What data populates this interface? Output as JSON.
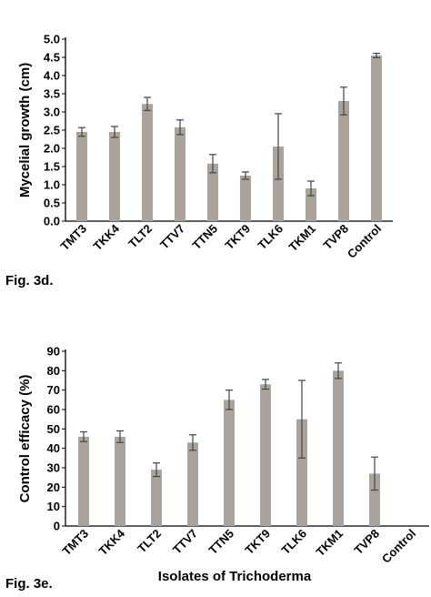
{
  "chart_data": [
    {
      "type": "bar",
      "categories": [
        "TMT3",
        "TKK4",
        "TLT2",
        "TTV7",
        "TTN5",
        "TKT9",
        "TLK6",
        "TKM1",
        "TVP8",
        "Control"
      ],
      "values": [
        2.45,
        2.45,
        3.22,
        2.58,
        1.58,
        1.25,
        2.05,
        0.9,
        3.3,
        4.55
      ],
      "errors": [
        0.12,
        0.15,
        0.18,
        0.2,
        0.25,
        0.1,
        0.9,
        0.2,
        0.38,
        0.06
      ],
      "ylabel": "Mycelial growth (cm)",
      "xlabel": "",
      "ylim": [
        0,
        5
      ],
      "yticks": [
        "0.0",
        "0.5",
        "1.0",
        "1.5",
        "2.0",
        "2.5",
        "3.0",
        "3.5",
        "4.0",
        "4.5",
        "5.0"
      ],
      "caption": "Fig. 3d.",
      "color": "#aaa39b",
      "grid": false
    },
    {
      "type": "bar",
      "categories": [
        "TMT3",
        "TKK4",
        "TLT2",
        "TTV7",
        "TTN5",
        "TKT9",
        "TLK6",
        "TKM1",
        "TVP8",
        "Control"
      ],
      "values": [
        46,
        46,
        29,
        43,
        65,
        73,
        55,
        80,
        27,
        0
      ],
      "errors": [
        2.5,
        3,
        3.5,
        4,
        5,
        2.5,
        20,
        4,
        8.5,
        0
      ],
      "ylabel": "Control efficacy (%)",
      "xlabel": "Isolates of Trichoderma",
      "ylim": [
        0,
        90
      ],
      "yticks": [
        "0",
        "10",
        "20",
        "30",
        "40",
        "50",
        "60",
        "70",
        "80",
        "90"
      ],
      "caption": "Fig. 3e.",
      "color": "#aaa39b",
      "grid": false
    }
  ]
}
